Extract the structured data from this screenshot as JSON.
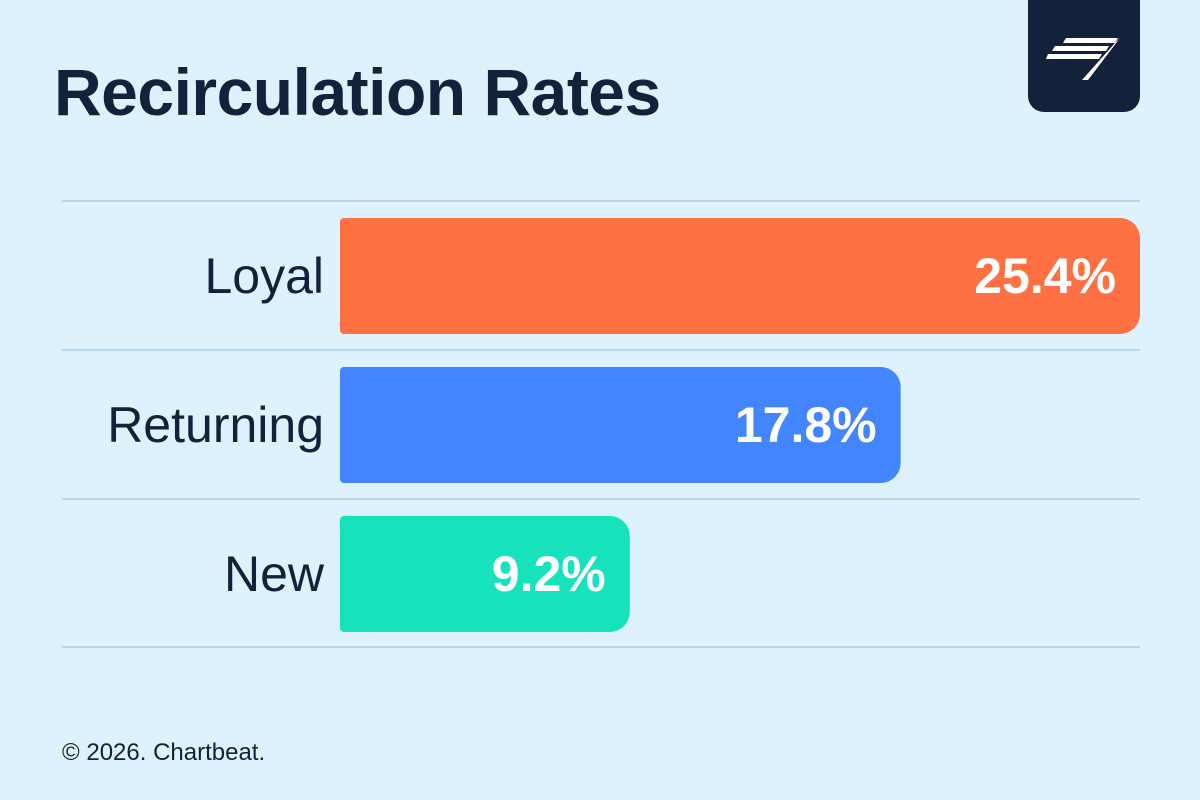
{
  "title": "Recirculation Rates",
  "footer": "© 2026. Chartbeat.",
  "logo_icon": "chartbeat-logo-icon",
  "chart_data": {
    "type": "bar",
    "orientation": "horizontal",
    "title": "Recirculation Rates",
    "xlabel": "",
    "ylabel": "",
    "xlim": [
      0,
      25.4
    ],
    "grid": false,
    "categories": [
      "Loyal",
      "Returning",
      "New"
    ],
    "values": [
      25.4,
      17.8,
      9.2
    ],
    "value_labels": [
      "25.4%",
      "17.8%",
      "9.2%"
    ],
    "colors": [
      "#ff7043",
      "#4285ff",
      "#16e3bb"
    ]
  }
}
